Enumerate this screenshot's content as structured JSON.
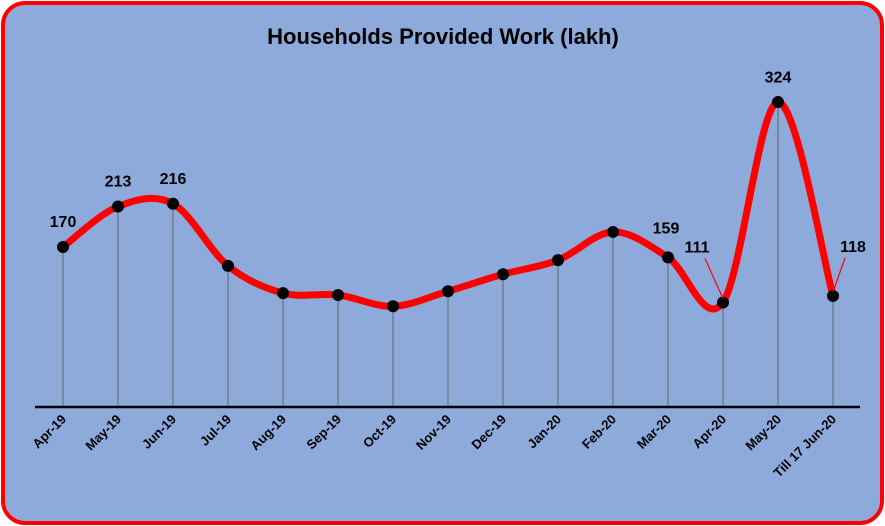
{
  "chart_data": {
    "type": "line",
    "title": "Households Provided Work (lakh)",
    "categories": [
      "Apr-19",
      "May-19",
      "Jun-19",
      "Jul-19",
      "Aug-19",
      "Sep-19",
      "Oct-19",
      "Nov-19",
      "Dec-19",
      "Jan-20",
      "Feb-20",
      "Mar-20",
      "Apr-20",
      "May-20",
      "Till 17 Jun-20"
    ],
    "values": [
      170,
      213,
      216,
      150,
      121,
      119,
      107,
      123,
      141,
      156,
      186,
      159,
      111,
      324,
      118
    ],
    "value_labels": [
      "170",
      "213",
      "216",
      null,
      null,
      null,
      null,
      null,
      null,
      null,
      null,
      "159",
      "111",
      "324",
      "118"
    ],
    "color": "#ff0000",
    "ylim": [
      0,
      340
    ]
  }
}
